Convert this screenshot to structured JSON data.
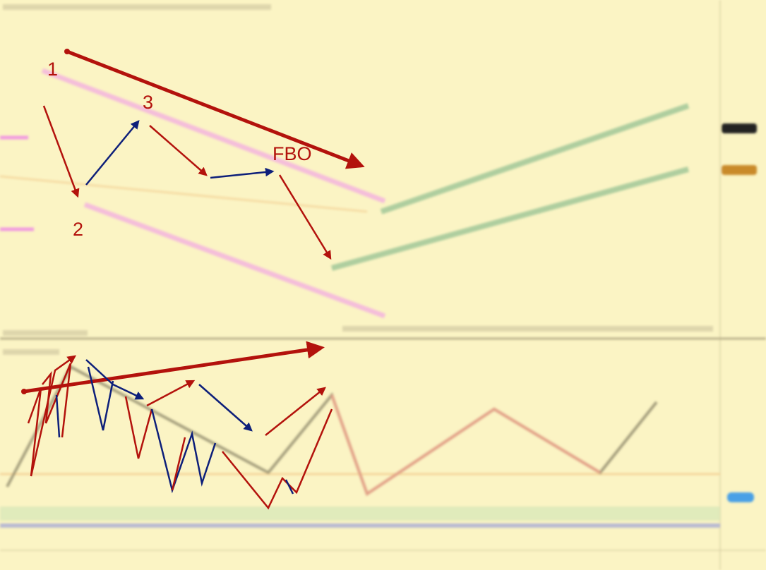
{
  "annotations": {
    "swing_1": "1",
    "swing_2": "2",
    "swing_3": "3",
    "pattern": "FBO"
  }
}
